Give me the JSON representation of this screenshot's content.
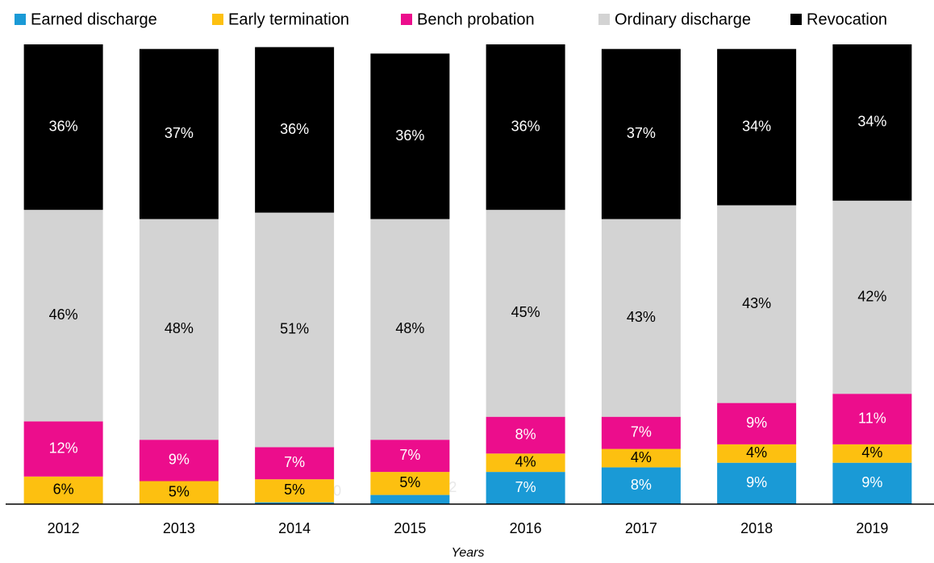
{
  "chart_data": {
    "type": "stacked_bar",
    "x_label": "Years",
    "categories": [
      "2012",
      "2013",
      "2014",
      "2015",
      "2016",
      "2017",
      "2018",
      "2019"
    ],
    "ylim": [
      0,
      100
    ],
    "series": [
      {
        "name": "Earned discharge",
        "color": "#1a9ad6",
        "values": [
          0,
          0,
          0.4,
          2,
          7,
          8,
          9,
          9
        ],
        "value_labels": [
          null,
          null,
          "0",
          "2",
          "7%",
          "8%",
          "9%",
          "9%"
        ]
      },
      {
        "name": "Early termination",
        "color": "#fdc010",
        "values": [
          6,
          5,
          5,
          5,
          4,
          4,
          4,
          4
        ],
        "value_labels": [
          "6%",
          "5%",
          "5%",
          "5%",
          "4%",
          "4%",
          "4%",
          "4%"
        ]
      },
      {
        "name": "Bench probation",
        "color": "#ec0d8c",
        "values": [
          12,
          9,
          7,
          7,
          8,
          7,
          9,
          11
        ],
        "value_labels": [
          "12%",
          "9%",
          "7%",
          "7%",
          "8%",
          "7%",
          "9%",
          "11%"
        ]
      },
      {
        "name": "Ordinary discharge",
        "color": "#d3d3d3",
        "values": [
          46,
          48,
          51,
          48,
          45,
          43,
          43,
          42
        ],
        "value_labels": [
          "46%",
          "48%",
          "51%",
          "48%",
          "45%",
          "43%",
          "43%",
          "42%"
        ]
      },
      {
        "name": "Revocation",
        "color": "#000000",
        "values": [
          36,
          37,
          36,
          36,
          36,
          37,
          34,
          34
        ],
        "value_labels": [
          "36%",
          "37%",
          "36%",
          "36%",
          "36%",
          "37%",
          "34%",
          "34%"
        ]
      }
    ],
    "legend": "top"
  }
}
